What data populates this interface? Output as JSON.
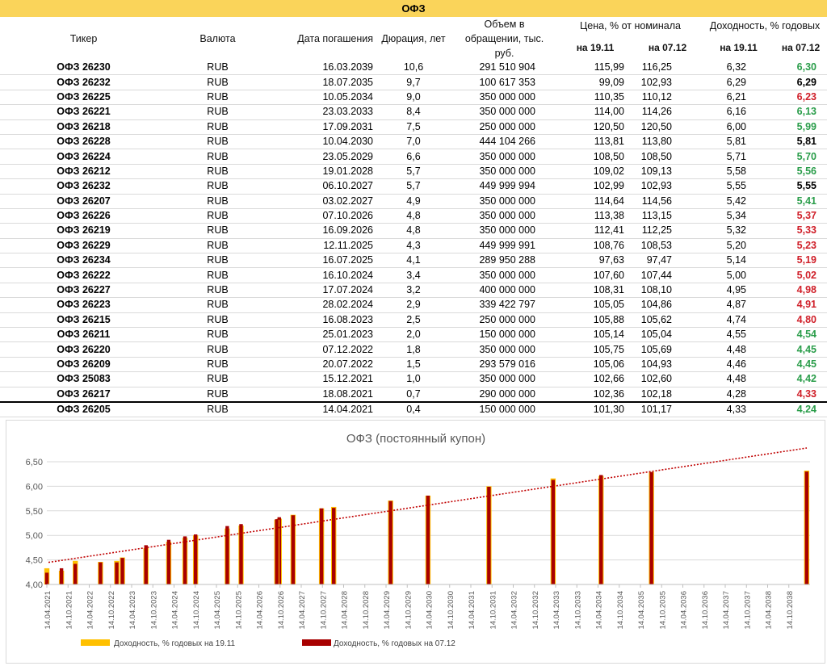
{
  "title": "ОФЗ",
  "headers": {
    "ticker": "Тикер",
    "currency": "Валюта",
    "maturity": "Дата погашения",
    "duration": "Дюрация, лет",
    "volume_l1": "Объем в",
    "volume_l2": "обращении, тыс.",
    "volume_l3": "руб.",
    "price": "Цена, % от номинала",
    "yield": "Доходность, % годовых",
    "price_d1": "на 19.11",
    "price_d2": "на 07.12",
    "yield_d1": "на 19.11",
    "yield_d2": "на 07.12"
  },
  "colors": {
    "up": "#2a9d4a",
    "down": "#d0202a",
    "flat": "#000000",
    "series1": "#ffc000",
    "series2": "#a80000",
    "trend": "#c00000",
    "banner": "#fad45a"
  },
  "rows": [
    {
      "ticker": "ОФЗ 26230",
      "currency": "RUB",
      "maturity": "16.03.2039",
      "duration": "10,6",
      "volume": "291 510 904",
      "price1": "115,99",
      "price2": "116,25",
      "yield1": "6,32",
      "yield2": "6,30",
      "trend": "up",
      "y1": 6.32,
      "y2": 6.3,
      "date": "2039-03-16"
    },
    {
      "ticker": "ОФЗ 26232",
      "currency": "RUB",
      "maturity": "18.07.2035",
      "duration": "9,7",
      "volume": "100 617 353",
      "price1": "99,09",
      "price2": "102,93",
      "yield1": "6,29",
      "yield2": "6,29",
      "trend": "flat",
      "y1": 6.29,
      "y2": 6.29,
      "date": "2035-07-18"
    },
    {
      "ticker": "ОФЗ 26225",
      "currency": "RUB",
      "maturity": "10.05.2034",
      "duration": "9,0",
      "volume": "350 000 000",
      "price1": "110,35",
      "price2": "110,12",
      "yield1": "6,21",
      "yield2": "6,23",
      "trend": "down",
      "y1": 6.21,
      "y2": 6.23,
      "date": "2034-05-10"
    },
    {
      "ticker": "ОФЗ 26221",
      "currency": "RUB",
      "maturity": "23.03.2033",
      "duration": "8,4",
      "volume": "350 000 000",
      "price1": "114,00",
      "price2": "114,26",
      "yield1": "6,16",
      "yield2": "6,13",
      "trend": "up",
      "y1": 6.16,
      "y2": 6.13,
      "date": "2033-03-23"
    },
    {
      "ticker": "ОФЗ 26218",
      "currency": "RUB",
      "maturity": "17.09.2031",
      "duration": "7,5",
      "volume": "250 000 000",
      "price1": "120,50",
      "price2": "120,50",
      "yield1": "6,00",
      "yield2": "5,99",
      "trend": "up",
      "y1": 6.0,
      "y2": 5.99,
      "date": "2031-09-17"
    },
    {
      "ticker": "ОФЗ 26228",
      "currency": "RUB",
      "maturity": "10.04.2030",
      "duration": "7,0",
      "volume": "444 104 266",
      "price1": "113,81",
      "price2": "113,80",
      "yield1": "5,81",
      "yield2": "5,81",
      "trend": "flat",
      "y1": 5.81,
      "y2": 5.81,
      "date": "2030-04-10"
    },
    {
      "ticker": "ОФЗ 26224",
      "currency": "RUB",
      "maturity": "23.05.2029",
      "duration": "6,6",
      "volume": "350 000 000",
      "price1": "108,50",
      "price2": "108,50",
      "yield1": "5,71",
      "yield2": "5,70",
      "trend": "up",
      "y1": 5.71,
      "y2": 5.7,
      "date": "2029-05-23"
    },
    {
      "ticker": "ОФЗ 26212",
      "currency": "RUB",
      "maturity": "19.01.2028",
      "duration": "5,7",
      "volume": "350 000 000",
      "price1": "109,02",
      "price2": "109,13",
      "yield1": "5,58",
      "yield2": "5,56",
      "trend": "up",
      "y1": 5.58,
      "y2": 5.56,
      "date": "2028-01-19"
    },
    {
      "ticker": "ОФЗ 26232",
      "currency": "RUB",
      "maturity": "06.10.2027",
      "duration": "5,7",
      "volume": "449 999 994",
      "price1": "102,99",
      "price2": "102,93",
      "yield1": "5,55",
      "yield2": "5,55",
      "trend": "flat",
      "y1": 5.55,
      "y2": 5.55,
      "date": "2027-10-06"
    },
    {
      "ticker": "ОФЗ 26207",
      "currency": "RUB",
      "maturity": "03.02.2027",
      "duration": "4,9",
      "volume": "350 000 000",
      "price1": "114,64",
      "price2": "114,56",
      "yield1": "5,42",
      "yield2": "5,41",
      "trend": "up",
      "y1": 5.42,
      "y2": 5.41,
      "date": "2027-02-03"
    },
    {
      "ticker": "ОФЗ 26226",
      "currency": "RUB",
      "maturity": "07.10.2026",
      "duration": "4,8",
      "volume": "350 000 000",
      "price1": "113,38",
      "price2": "113,15",
      "yield1": "5,34",
      "yield2": "5,37",
      "trend": "down",
      "y1": 5.34,
      "y2": 5.37,
      "date": "2026-10-07"
    },
    {
      "ticker": "ОФЗ 26219",
      "currency": "RUB",
      "maturity": "16.09.2026",
      "duration": "4,8",
      "volume": "350 000 000",
      "price1": "112,41",
      "price2": "112,25",
      "yield1": "5,32",
      "yield2": "5,33",
      "trend": "down",
      "y1": 5.32,
      "y2": 5.33,
      "date": "2026-09-16"
    },
    {
      "ticker": "ОФЗ 26229",
      "currency": "RUB",
      "maturity": "12.11.2025",
      "duration": "4,3",
      "volume": "449 999 991",
      "price1": "108,76",
      "price2": "108,53",
      "yield1": "5,20",
      "yield2": "5,23",
      "trend": "down",
      "y1": 5.2,
      "y2": 5.23,
      "date": "2025-11-12"
    },
    {
      "ticker": "ОФЗ 26234",
      "currency": "RUB",
      "maturity": "16.07.2025",
      "duration": "4,1",
      "volume": "289 950 288",
      "price1": "97,63",
      "price2": "97,47",
      "yield1": "5,14",
      "yield2": "5,19",
      "trend": "down",
      "y1": 5.14,
      "y2": 5.19,
      "date": "2025-07-16"
    },
    {
      "ticker": "ОФЗ 26222",
      "currency": "RUB",
      "maturity": "16.10.2024",
      "duration": "3,4",
      "volume": "350 000 000",
      "price1": "107,60",
      "price2": "107,44",
      "yield1": "5,00",
      "yield2": "5,02",
      "trend": "down",
      "y1": 5.0,
      "y2": 5.02,
      "date": "2024-10-16"
    },
    {
      "ticker": "ОФЗ 26227",
      "currency": "RUB",
      "maturity": "17.07.2024",
      "duration": "3,2",
      "volume": "400 000 000",
      "price1": "108,31",
      "price2": "108,10",
      "yield1": "4,95",
      "yield2": "4,98",
      "trend": "down",
      "y1": 4.95,
      "y2": 4.98,
      "date": "2024-07-17"
    },
    {
      "ticker": "ОФЗ 26223",
      "currency": "RUB",
      "maturity": "28.02.2024",
      "duration": "2,9",
      "volume": "339 422 797",
      "price1": "105,05",
      "price2": "104,86",
      "yield1": "4,87",
      "yield2": "4,91",
      "trend": "down",
      "y1": 4.87,
      "y2": 4.91,
      "date": "2024-02-28"
    },
    {
      "ticker": "ОФЗ 26215",
      "currency": "RUB",
      "maturity": "16.08.2023",
      "duration": "2,5",
      "volume": "250 000 000",
      "price1": "105,88",
      "price2": "105,62",
      "yield1": "4,74",
      "yield2": "4,80",
      "trend": "down",
      "y1": 4.74,
      "y2": 4.8,
      "date": "2023-08-16"
    },
    {
      "ticker": "ОФЗ 26211",
      "currency": "RUB",
      "maturity": "25.01.2023",
      "duration": "2,0",
      "volume": "150 000 000",
      "price1": "105,14",
      "price2": "105,04",
      "yield1": "4,55",
      "yield2": "4,54",
      "trend": "up",
      "y1": 4.55,
      "y2": 4.54,
      "date": "2023-01-25"
    },
    {
      "ticker": "ОФЗ 26220",
      "currency": "RUB",
      "maturity": "07.12.2022",
      "duration": "1,8",
      "volume": "350 000 000",
      "price1": "105,75",
      "price2": "105,69",
      "yield1": "4,48",
      "yield2": "4,45",
      "trend": "up",
      "y1": 4.48,
      "y2": 4.45,
      "date": "2022-12-07"
    },
    {
      "ticker": "ОФЗ 26209",
      "currency": "RUB",
      "maturity": "20.07.2022",
      "duration": "1,5",
      "volume": "293 579 016",
      "price1": "105,06",
      "price2": "104,93",
      "yield1": "4,46",
      "yield2": "4,45",
      "trend": "up",
      "y1": 4.46,
      "y2": 4.45,
      "date": "2022-07-20"
    },
    {
      "ticker": "ОФЗ 25083",
      "currency": "RUB",
      "maturity": "15.12.2021",
      "duration": "1,0",
      "volume": "350 000 000",
      "price1": "102,66",
      "price2": "102,60",
      "yield1": "4,48",
      "yield2": "4,42",
      "trend": "up",
      "y1": 4.48,
      "y2": 4.42,
      "date": "2021-12-15"
    },
    {
      "ticker": "ОФЗ 26217",
      "currency": "RUB",
      "maturity": "18.08.2021",
      "duration": "0,7",
      "volume": "290 000 000",
      "price1": "102,36",
      "price2": "102,18",
      "yield1": "4,28",
      "yield2": "4,33",
      "trend": "down",
      "y1": 4.28,
      "y2": 4.33,
      "date": "2021-08-18"
    },
    {
      "ticker": "ОФЗ 26205",
      "currency": "RUB",
      "maturity": "14.04.2021",
      "duration": "0,4",
      "volume": "150 000 000",
      "price1": "101,30",
      "price2": "101,17",
      "yield1": "4,33",
      "yield2": "4,24",
      "trend": "up",
      "y1": 4.33,
      "y2": 4.24,
      "date": "2021-04-14"
    }
  ],
  "chart_data": {
    "type": "bar",
    "title": "ОФЗ (постоянный купон)",
    "xaxis": "date",
    "xlim": [
      "2021-04-14",
      "2039-04-14"
    ],
    "ylim": [
      4.0,
      6.5
    ],
    "yticks": [
      "4,00",
      "4,50",
      "5,00",
      "5,50",
      "6,00",
      "6,50"
    ],
    "xticks": [
      "14.04.2021",
      "14.10.2021",
      "14.04.2022",
      "14.10.2022",
      "14.04.2023",
      "14.10.2023",
      "14.04.2024",
      "14.10.2024",
      "14.04.2025",
      "14.10.2025",
      "14.04.2026",
      "14.10.2026",
      "14.04.2027",
      "14.10.2027",
      "14.04.2028",
      "14.10.2028",
      "14.04.2029",
      "14.10.2029",
      "14.04.2030",
      "14.10.2030",
      "14.04.2031",
      "14.10.2031",
      "14.04.2032",
      "14.10.2032",
      "14.04.2033",
      "14.10.2033",
      "14.04.2034",
      "14.10.2034",
      "14.04.2035",
      "14.10.2035",
      "14.04.2036",
      "14.10.2036",
      "14.04.2037",
      "14.10.2037",
      "14.04.2038",
      "14.10.2038"
    ],
    "grid": true,
    "legend": "bottom-left",
    "series": [
      {
        "name": "Доходность, % годовых на 19.11",
        "field": "y1"
      },
      {
        "name": "Доходность, % годовых на 07.12",
        "field": "y2"
      }
    ],
    "trendline": {
      "style": "dotted",
      "y_start": 4.45,
      "y_end": 6.78
    }
  }
}
